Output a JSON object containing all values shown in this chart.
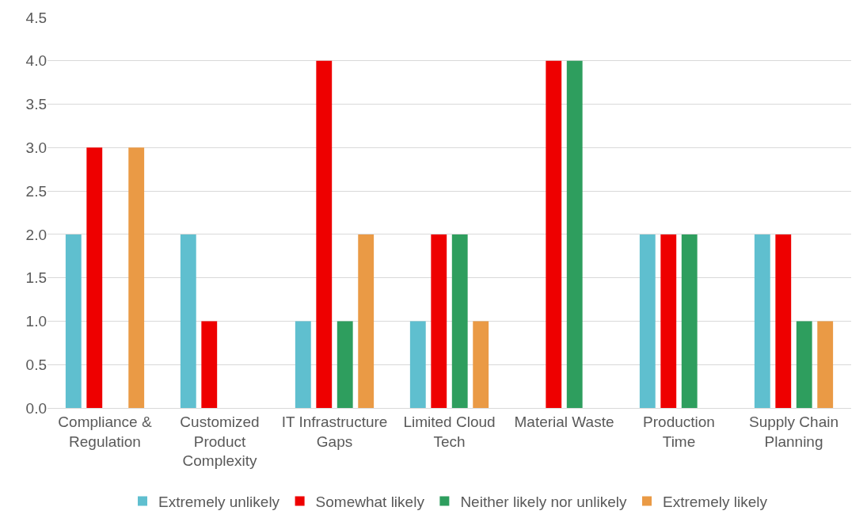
{
  "chart_data": {
    "type": "bar",
    "categories": [
      "Compliance &\nRegulation",
      "Customized\nProduct\nComplexity",
      "IT Infrastructure\nGaps",
      "Limited Cloud\nTech",
      "Material Waste",
      "Production\nTime",
      "Supply Chain\nPlanning"
    ],
    "series": [
      {
        "name": "Extremely unlikely",
        "color": "#5fbfcf",
        "values": [
          2,
          2,
          1,
          1,
          null,
          2,
          2
        ]
      },
      {
        "name": "Somewhat likely",
        "color": "#ee0000",
        "values": [
          3,
          1,
          4,
          2,
          4,
          2,
          2
        ]
      },
      {
        "name": "Neither likely nor unlikely",
        "color": "#2e9e5e",
        "values": [
          null,
          null,
          1,
          2,
          4,
          2,
          1
        ]
      },
      {
        "name": "Extremely likely",
        "color": "#ea9a45",
        "values": [
          3,
          null,
          2,
          1,
          null,
          null,
          1
        ]
      }
    ],
    "ylim": [
      0,
      4.5
    ],
    "yticks": [
      {
        "value": 0,
        "label": "0.0"
      },
      {
        "value": 0.5,
        "label": "0.5"
      },
      {
        "value": 1,
        "label": "1.0"
      },
      {
        "value": 1.5,
        "label": "1.5"
      },
      {
        "value": 2,
        "label": "2.0"
      },
      {
        "value": 2.5,
        "label": "2.5"
      },
      {
        "value": 3,
        "label": "3.0"
      },
      {
        "value": 3.5,
        "label": "3.5"
      },
      {
        "value": 4,
        "label": "4.0"
      },
      {
        "value": 4.5,
        "label": "4.5"
      }
    ],
    "grid": "y",
    "legend": "bottom"
  }
}
